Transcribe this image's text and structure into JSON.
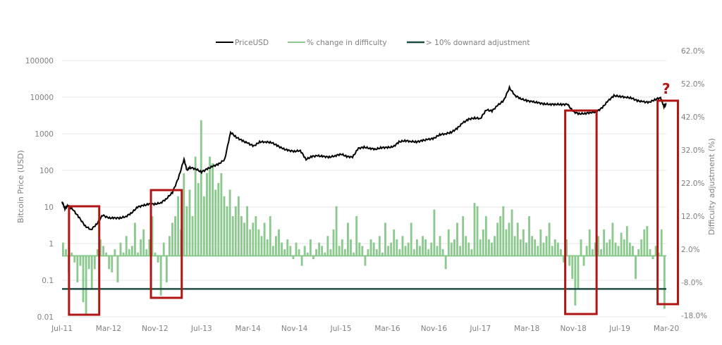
{
  "chart_data": {
    "type": "line+bar",
    "title": "",
    "legend": {
      "placement": "top",
      "items": [
        "PriceUSD",
        "% change in difficulty",
        "> 10% downard adjustment"
      ]
    },
    "colors": {
      "price": "#000000",
      "difficulty": "#8cc98f",
      "threshold": "#1f4e44",
      "highlight": "#b01515"
    },
    "ylabel_left": "Bitcoin Price (USD)",
    "ylabel_right": "Difficulty adjustment (%)",
    "yticks_left": [
      "100000",
      "10000",
      "1000",
      "100",
      "10",
      "1",
      "0.1",
      "0.01"
    ],
    "yticks_right": [
      "62.0%",
      "52.0%",
      "42.0%",
      "32.0%",
      "22.0%",
      "12.0%",
      "2.0%",
      "-8.0%",
      "-18.0%"
    ],
    "ylim_left": [
      0.01,
      100000
    ],
    "ylim_right": [
      -18,
      62
    ],
    "y_scale_left": "log",
    "xticks": [
      "Jul-11",
      "Mar-12",
      "Nov-12",
      "Jul-13",
      "Mar-14",
      "Nov-14",
      "Jul-15",
      "Mar-16",
      "Nov-16",
      "Jul-17",
      "Mar-18",
      "Nov-18",
      "Jul-19",
      "Mar-20"
    ],
    "x_unit": "months since Jul-11",
    "xlim": [
      0,
      104
    ],
    "threshold_percent": -10,
    "annotation": "?",
    "highlight_ranges_months": [
      [
        1.2,
        6.4
      ],
      [
        15.3,
        20.6
      ],
      [
        86.6,
        92
      ],
      [
        102.5,
        106
      ]
    ],
    "price_series": [
      [
        0,
        14
      ],
      [
        0.5,
        9
      ],
      [
        1,
        11
      ],
      [
        2,
        8
      ],
      [
        3,
        5
      ],
      [
        4,
        3
      ],
      [
        5,
        2.4
      ],
      [
        6,
        3.5
      ],
      [
        7,
        6
      ],
      [
        8,
        5
      ],
      [
        9,
        5
      ],
      [
        10,
        5
      ],
      [
        11,
        5.5
      ],
      [
        12,
        7
      ],
      [
        13,
        10
      ],
      [
        14,
        11
      ],
      [
        15,
        12
      ],
      [
        16,
        12
      ],
      [
        17,
        13
      ],
      [
        18,
        17
      ],
      [
        19,
        25
      ],
      [
        20,
        60
      ],
      [
        21,
        200
      ],
      [
        21.5,
        100
      ],
      [
        22,
        120
      ],
      [
        23,
        110
      ],
      [
        24,
        90
      ],
      [
        25,
        110
      ],
      [
        26,
        130
      ],
      [
        27,
        150
      ],
      [
        28,
        200
      ],
      [
        29,
        1100
      ],
      [
        30,
        800
      ],
      [
        31,
        650
      ],
      [
        32,
        550
      ],
      [
        33,
        460
      ],
      [
        34,
        600
      ],
      [
        35,
        600
      ],
      [
        36,
        580
      ],
      [
        37,
        480
      ],
      [
        38,
        390
      ],
      [
        39,
        350
      ],
      [
        40,
        330
      ],
      [
        41,
        350
      ],
      [
        42,
        200
      ],
      [
        43,
        240
      ],
      [
        44,
        250
      ],
      [
        45,
        240
      ],
      [
        46,
        230
      ],
      [
        47,
        250
      ],
      [
        48,
        280
      ],
      [
        49,
        240
      ],
      [
        50,
        230
      ],
      [
        51,
        400
      ],
      [
        52,
        430
      ],
      [
        53,
        400
      ],
      [
        54,
        380
      ],
      [
        55,
        420
      ],
      [
        56,
        420
      ],
      [
        57,
        440
      ],
      [
        58,
        600
      ],
      [
        59,
        650
      ],
      [
        60,
        620
      ],
      [
        61,
        600
      ],
      [
        62,
        650
      ],
      [
        63,
        700
      ],
      [
        64,
        750
      ],
      [
        65,
        950
      ],
      [
        66,
        1000
      ],
      [
        67,
        1100
      ],
      [
        68,
        1400
      ],
      [
        69,
        2000
      ],
      [
        70,
        2500
      ],
      [
        71,
        2700
      ],
      [
        72,
        2600
      ],
      [
        73,
        4500
      ],
      [
        74,
        4200
      ],
      [
        75,
        6000
      ],
      [
        76,
        8000
      ],
      [
        77,
        18000
      ],
      [
        78,
        11000
      ],
      [
        79,
        9000
      ],
      [
        80,
        8000
      ],
      [
        81,
        7500
      ],
      [
        82,
        7000
      ],
      [
        83,
        6500
      ],
      [
        84,
        6400
      ],
      [
        85,
        6400
      ],
      [
        86,
        6300
      ],
      [
        87,
        6400
      ],
      [
        88,
        4000
      ],
      [
        89,
        3500
      ],
      [
        90,
        3600
      ],
      [
        91,
        3800
      ],
      [
        92,
        4000
      ],
      [
        93,
        5200
      ],
      [
        94,
        8000
      ],
      [
        95,
        11000
      ],
      [
        96,
        10500
      ],
      [
        97,
        10000
      ],
      [
        98,
        9500
      ],
      [
        99,
        8000
      ],
      [
        100,
        7500
      ],
      [
        101,
        7200
      ],
      [
        102,
        8500
      ],
      [
        103,
        9800
      ],
      [
        103.6,
        5500
      ],
      [
        104,
        6500
      ]
    ],
    "difficulty_percent": [
      4,
      2,
      -5,
      1,
      -2,
      -8,
      -3,
      -14,
      -18,
      -4,
      -10,
      -4,
      2,
      5,
      3,
      1,
      -4,
      -5,
      2,
      -8,
      4,
      1,
      6,
      2,
      3,
      10,
      1,
      5,
      8,
      2,
      5,
      12,
      1,
      -2,
      -12,
      4,
      -8,
      6,
      10,
      12,
      18,
      8,
      25,
      15,
      20,
      12,
      30,
      22,
      41,
      18,
      25,
      30,
      28,
      20,
      22,
      25,
      18,
      15,
      20,
      12,
      15,
      18,
      12,
      10,
      15,
      8,
      10,
      12,
      8,
      6,
      10,
      5,
      12,
      3,
      6,
      8,
      4,
      2,
      5,
      3,
      -1,
      4,
      2,
      -3,
      3,
      1,
      5,
      -1,
      2,
      4,
      3,
      1,
      6,
      2,
      8,
      15,
      3,
      5,
      2,
      10,
      5,
      1,
      12,
      4,
      3,
      -3,
      2,
      5,
      4,
      2,
      6,
      1,
      10,
      3,
      4,
      8,
      5,
      2,
      6,
      3,
      4,
      10,
      2,
      5,
      3,
      6,
      5,
      2,
      4,
      14,
      3,
      6,
      2,
      -4,
      8,
      4,
      5,
      10,
      3,
      12,
      6,
      4,
      2,
      16,
      15,
      5,
      8,
      12,
      5,
      4,
      6,
      10,
      12,
      15,
      8,
      10,
      14,
      6,
      10,
      5,
      8,
      4,
      12,
      6,
      5,
      3,
      8,
      4,
      6,
      10,
      3,
      5,
      4,
      2,
      -2,
      5,
      -3,
      -7,
      -15,
      -10,
      5,
      -3,
      3,
      8,
      2,
      4,
      6,
      2,
      8,
      4,
      5,
      10,
      4,
      3,
      7,
      5,
      9,
      4,
      3,
      -7,
      2,
      5,
      8,
      9,
      2,
      -1,
      3,
      1,
      8,
      -16
    ]
  }
}
